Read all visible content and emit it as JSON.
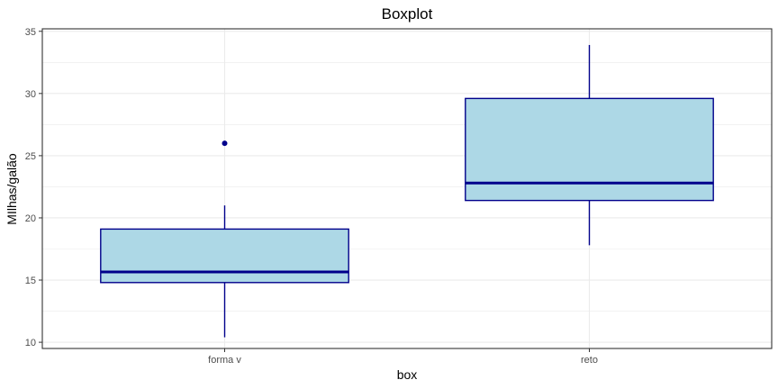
{
  "chart_data": {
    "type": "boxplot",
    "title": "Boxplot",
    "xlabel": "box",
    "ylabel": "MIlhas/galão",
    "categories": [
      "forma v",
      "reto"
    ],
    "ylim": [
      9.5,
      35.2
    ],
    "yticks": [
      10,
      15,
      20,
      25,
      30,
      35
    ],
    "grid": true,
    "boxes": [
      {
        "category": "forma v",
        "whisker_low": 10.4,
        "q1": 14.8,
        "median": 15.65,
        "q3": 19.1,
        "whisker_high": 21.0,
        "outliers": [
          26.0
        ]
      },
      {
        "category": "reto",
        "whisker_low": 17.8,
        "q1": 21.4,
        "median": 22.8,
        "q3": 29.6,
        "whisker_high": 33.9,
        "outliers": []
      }
    ],
    "colors": {
      "fill": "#add8e6",
      "line": "#00008b",
      "grid": "#ebebeb",
      "panel_border": "#333333"
    }
  }
}
